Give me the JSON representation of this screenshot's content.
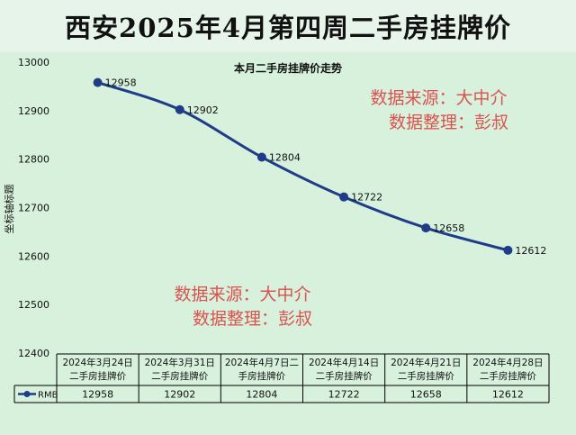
{
  "page_title": "西安2025年4月第四周二手房挂牌价",
  "watermark": {
    "line1": "数据来源：大中介",
    "line2": "数据整理：彭叔"
  },
  "colors": {
    "line": "#1f3c88",
    "background": "#d7f1dd",
    "title_bg": "#e6f4ea",
    "watermark": "#d9534f"
  },
  "chart_data": {
    "type": "line",
    "title": "本月二手房挂牌价走势",
    "ylabel": "坐标轴标题",
    "xlabel": "",
    "ylim": [
      12400,
      13000
    ],
    "yticks": [
      12400,
      12500,
      12600,
      12700,
      12800,
      12900,
      13000
    ],
    "categories": [
      "2024年3月24日二手房挂牌价",
      "2024年3月31日二手房挂牌价",
      "2024年4月7日二手房挂牌价",
      "2024年4月14日二手房挂牌价",
      "2024年4月21日二手房挂牌价",
      "2024年4月28日二手房挂牌价"
    ],
    "category_lines": [
      [
        "2024年3月24日",
        "二手房挂牌价"
      ],
      [
        "2024年3月31日",
        "二手房挂牌价"
      ],
      [
        "2024年4月7日二",
        "手房挂牌价"
      ],
      [
        "2024年4月14日",
        "二手房挂牌价"
      ],
      [
        "2024年4月21日",
        "二手房挂牌价"
      ],
      [
        "2024年4月28日",
        "二手房挂牌价"
      ]
    ],
    "series": [
      {
        "name": "RMB",
        "values": [
          12958,
          12902,
          12804,
          12722,
          12658,
          12612
        ]
      }
    ],
    "grid": false,
    "legend": "data-table-left"
  }
}
